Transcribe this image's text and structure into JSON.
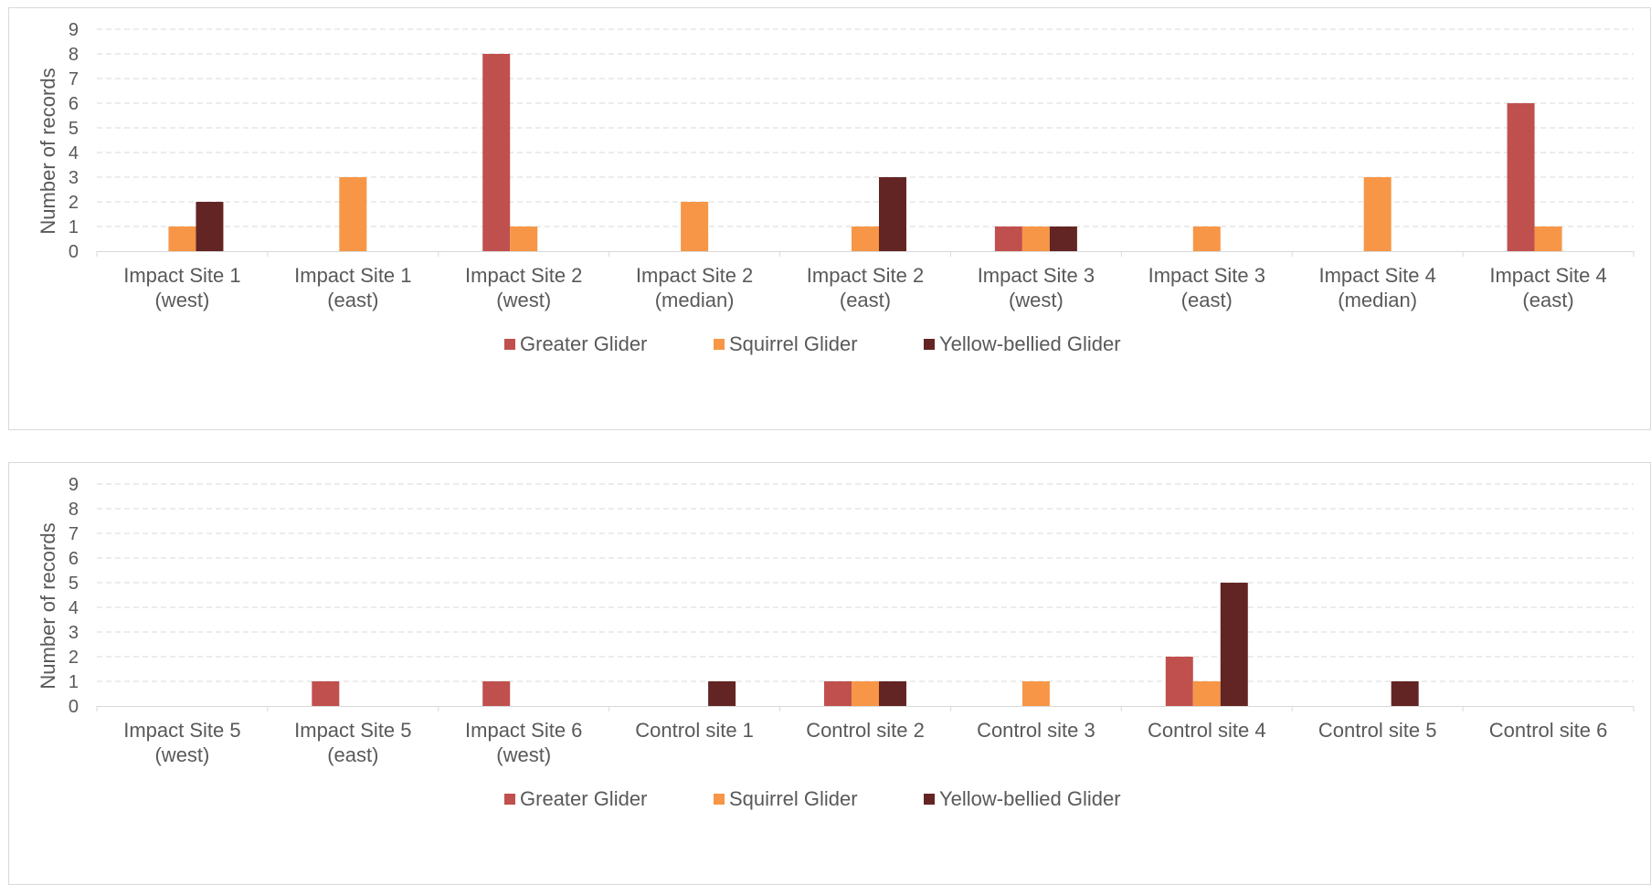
{
  "colors": {
    "greater": "#c0504d",
    "squirrel": "#f79646",
    "yellow": "#632523"
  },
  "chart_data": [
    {
      "type": "bar",
      "ylabel": "Number of records",
      "ylim": [
        0,
        9
      ],
      "yticks": [
        "0",
        "1",
        "2",
        "3",
        "4",
        "5",
        "6",
        "7",
        "8",
        "9"
      ],
      "grid": true,
      "legend_position": "bottom",
      "categories": [
        [
          "Impact Site 1",
          "(west)"
        ],
        [
          "Impact Site 1",
          "(east)"
        ],
        [
          "Impact Site 2",
          "(west)"
        ],
        [
          "Impact Site 2",
          "(median)"
        ],
        [
          "Impact Site 2",
          "(east)"
        ],
        [
          "Impact Site 3",
          "(west)"
        ],
        [
          "Impact Site 3",
          "(east)"
        ],
        [
          "Impact Site 4",
          "(median)"
        ],
        [
          "Impact Site 4",
          "(east)"
        ]
      ],
      "series": [
        {
          "name": "Greater Glider",
          "color": "#c0504d",
          "values": [
            0,
            0,
            8,
            0,
            0,
            1,
            0,
            0,
            6
          ]
        },
        {
          "name": "Squirrel Glider",
          "color": "#f79646",
          "values": [
            1,
            3,
            1,
            2,
            1,
            1,
            1,
            3,
            1
          ]
        },
        {
          "name": "Yellow-bellied Glider",
          "color": "#632523",
          "values": [
            2,
            0,
            0,
            0,
            3,
            1,
            0,
            0,
            0
          ]
        }
      ]
    },
    {
      "type": "bar",
      "ylabel": "Number of records",
      "ylim": [
        0,
        9
      ],
      "yticks": [
        "0",
        "1",
        "2",
        "3",
        "4",
        "5",
        "6",
        "7",
        "8",
        "9"
      ],
      "grid": true,
      "legend_position": "bottom",
      "categories": [
        [
          "Impact Site 5",
          "(west)"
        ],
        [
          "Impact Site 5",
          "(east)"
        ],
        [
          "Impact Site 6",
          "(west)"
        ],
        [
          "Control site 1"
        ],
        [
          "Control site 2"
        ],
        [
          "Control site 3"
        ],
        [
          "Control site 4"
        ],
        [
          "Control site 5"
        ],
        [
          "Control site 6"
        ]
      ],
      "series": [
        {
          "name": "Greater Glider",
          "color": "#c0504d",
          "values": [
            0,
            1,
            1,
            0,
            1,
            0,
            2,
            0,
            0
          ]
        },
        {
          "name": "Squirrel Glider",
          "color": "#f79646",
          "values": [
            0,
            0,
            0,
            0,
            1,
            1,
            1,
            0,
            0
          ]
        },
        {
          "name": "Yellow-bellied Glider",
          "color": "#632523",
          "values": [
            0,
            0,
            0,
            1,
            1,
            0,
            5,
            1,
            0
          ]
        }
      ]
    }
  ]
}
